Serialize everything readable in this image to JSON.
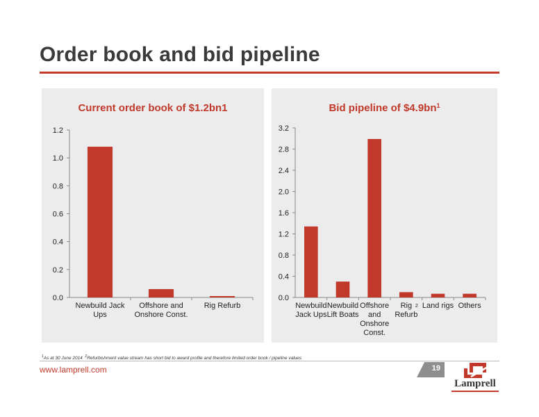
{
  "slide": {
    "title": "Order book and bid pipeline",
    "website": "www.lamprell.com",
    "page_number": "19",
    "footnote_1": "As at 30 June 2014",
    "footnote_2": "Refurbishment value stream has short bid to award profile and therefore limited order book / pipeline values",
    "logo_text": "Lamprell",
    "colors": {
      "accent": "#c0392b",
      "panel_bg": "#ececec",
      "bar": "#c0392b"
    }
  },
  "chart_data": [
    {
      "type": "bar",
      "title": "Current order book of $1.2bn",
      "title_superscript": "1",
      "categories": [
        [
          "Newbuild Jack",
          "Ups"
        ],
        [
          "Offshore and",
          "Onshore Const."
        ],
        [
          "Rig Refurb"
        ]
      ],
      "values": [
        1.08,
        0.06,
        0.01
      ],
      "yticks": [
        "0.0",
        "0.2",
        "0.4",
        "0.6",
        "0.8",
        "1.0",
        "1.2"
      ],
      "ylim": [
        0,
        1.2
      ],
      "grid": false,
      "color": "#c0392b"
    },
    {
      "type": "bar",
      "title": "Bid pipeline of $4.9bn",
      "title_superscript": "1",
      "categories": [
        [
          "Newbuild",
          "Jack Ups"
        ],
        [
          "Newbuild",
          "Lift Boats"
        ],
        [
          "Offshore",
          "and",
          "Onshore",
          "Const."
        ],
        [
          "Rig",
          "Refurb"
        ],
        [
          "Land rigs"
        ],
        [
          "Others"
        ]
      ],
      "category_superscripts": [
        "",
        "",
        "",
        "2",
        "",
        ""
      ],
      "values": [
        1.34,
        0.3,
        2.99,
        0.1,
        0.07,
        0.07
      ],
      "yticks": [
        "0.0",
        "0.4",
        "0.8",
        "1.2",
        "1.6",
        "2.0",
        "2.4",
        "2.8",
        "3.2"
      ],
      "ylim": [
        0,
        3.2
      ],
      "grid": false,
      "color": "#c0392b"
    }
  ]
}
